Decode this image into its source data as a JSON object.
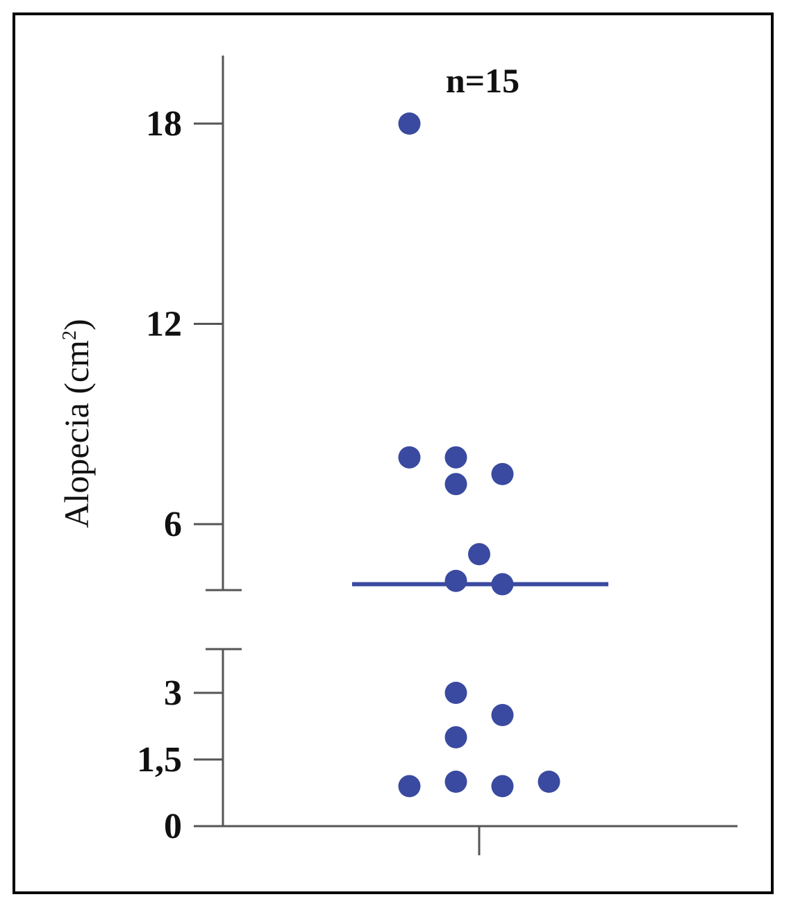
{
  "chart_data": {
    "type": "scatter",
    "title": "",
    "annotation": "n=15",
    "ylabel": "Alopecia (cm",
    "ylabel_superscript": "2",
    "ylabel_suffix": ")",
    "xlabel": "",
    "y_axis_break": true,
    "y_segments": [
      {
        "ylim": [
          0,
          4
        ],
        "ticks": [
          0,
          1.5,
          3
        ],
        "tick_labels": [
          "0",
          "1,5",
          "3"
        ]
      },
      {
        "ylim": [
          4,
          20
        ],
        "ticks": [
          6,
          12,
          18
        ],
        "tick_labels": [
          "6",
          "12",
          "18"
        ]
      }
    ],
    "points": [
      {
        "group": -3,
        "y": 18
      },
      {
        "group": -3,
        "y": 8
      },
      {
        "group": -1,
        "y": 8
      },
      {
        "group": -1,
        "y": 7.2
      },
      {
        "group": 1,
        "y": 7.5
      },
      {
        "group": 0,
        "y": 5.1
      },
      {
        "group": -1,
        "y": 4.3
      },
      {
        "group": 1,
        "y": 4.2
      },
      {
        "group": -1,
        "y": 3
      },
      {
        "group": 1,
        "y": 2.5
      },
      {
        "group": -1,
        "y": 2
      },
      {
        "group": -3,
        "y": 0.9
      },
      {
        "group": -1,
        "y": 1
      },
      {
        "group": 1,
        "y": 0.9
      },
      {
        "group": 3,
        "y": 1
      }
    ],
    "median": 4.2,
    "grid": false,
    "colors": {
      "points": "#3a4aa0",
      "median": "#3a4aa0",
      "axis": "#555555"
    }
  }
}
